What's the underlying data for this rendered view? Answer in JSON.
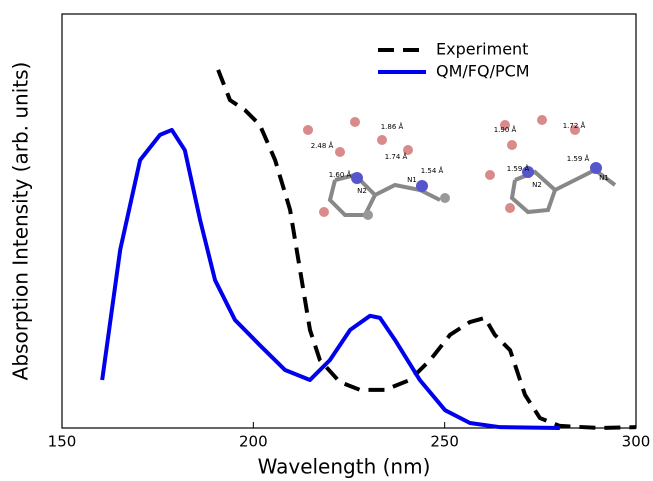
{
  "chart_data": {
    "type": "line",
    "xlabel": "Wavelength (nm)",
    "ylabel": "Absorption Intensity (arb. units)",
    "xlim": [
      150,
      300
    ],
    "xticks": [
      150,
      200,
      250,
      300
    ],
    "ylim": [
      0,
      1
    ],
    "legend": "upper right",
    "series": [
      {
        "name": "Experiment",
        "color": "#000000",
        "linestyle": "dashed",
        "x": [
          190.8,
          193.9,
          197.8,
          201.7,
          205.7,
          209.6,
          212.2,
          214.8,
          217.4,
          222.6,
          227.9,
          234.4,
          240.9,
          246.2,
          251.4,
          256.6,
          260.5,
          263.1,
          267.1,
          271.0,
          274.9,
          280.1,
          290.6,
          300
        ],
        "values": [
          0.865,
          0.792,
          0.768,
          0.732,
          0.647,
          0.527,
          0.382,
          0.237,
          0.164,
          0.111,
          0.092,
          0.092,
          0.116,
          0.164,
          0.225,
          0.256,
          0.266,
          0.225,
          0.188,
          0.08,
          0.024,
          0.005,
          0,
          0.002
        ]
      },
      {
        "name": "QM/FQ/PCM",
        "color": "#0000ee",
        "linestyle": "solid",
        "x": [
          160.5,
          165.2,
          170.4,
          175.6,
          178.7,
          182.1,
          186.1,
          190.0,
          195.2,
          201.7,
          208.3,
          214.8,
          220.0,
          225.3,
          230.5,
          233.1,
          237.0,
          243.5,
          250.1,
          256.6,
          264.5,
          280.1
        ],
        "values": [
          0.116,
          0.43,
          0.647,
          0.708,
          0.72,
          0.671,
          0.502,
          0.357,
          0.261,
          0.2,
          0.14,
          0.116,
          0.164,
          0.237,
          0.271,
          0.266,
          0.213,
          0.116,
          0.043,
          0.012,
          0.002,
          0
        ]
      }
    ],
    "annotations": [
      "1.86 Å",
      "2.48 Å",
      "1.74 Å",
      "1.60 Å",
      "1.54 Å",
      "N2",
      "N1",
      "1.90 Å",
      "1.72 Å",
      "1.59 Å",
      "1.59 Å",
      "N2",
      "N1"
    ]
  }
}
